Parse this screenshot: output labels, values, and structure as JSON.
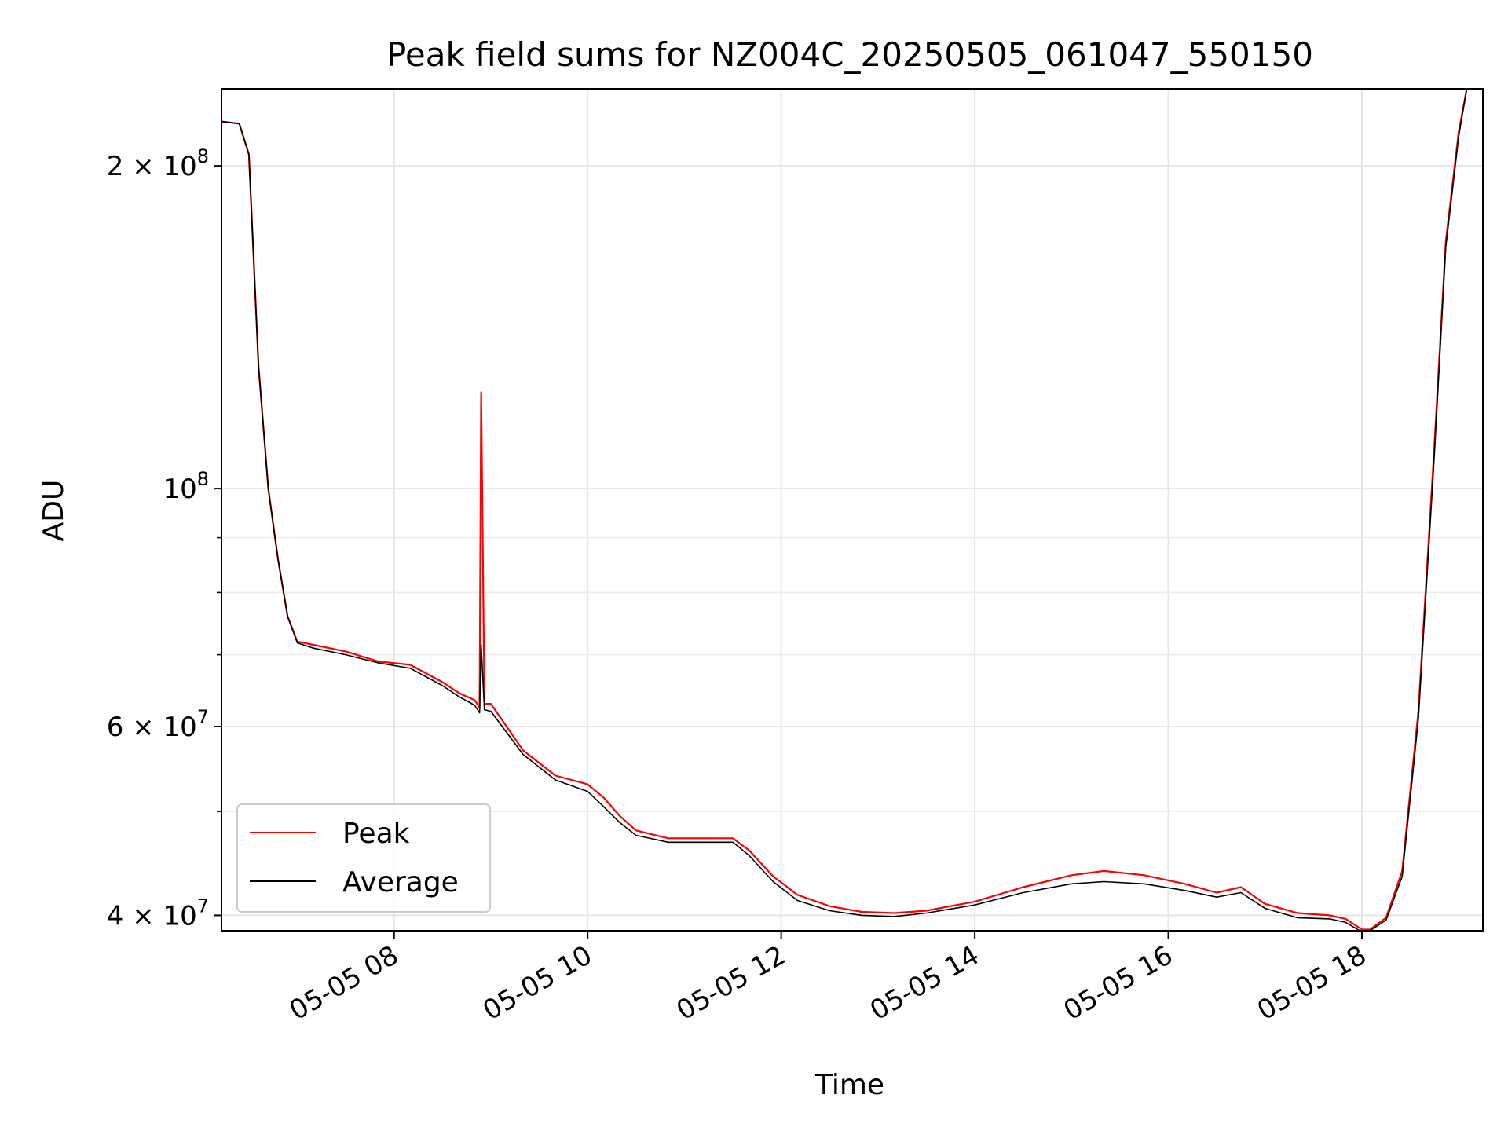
{
  "chart_data": {
    "type": "line",
    "title": "Peak field sums for NZ004C_20250505_061047_550150",
    "xlabel": "Time",
    "ylabel": "ADU",
    "y_scale": "log",
    "grid": true,
    "legend_position": "lower-left",
    "xlim": [
      "2025-05-05 06:13",
      "2025-05-05 19:15"
    ],
    "ylim": [
      38700000,
      236000000
    ],
    "x_ticks": [
      "05-05 08",
      "05-05 10",
      "05-05 12",
      "05-05 14",
      "05-05 16",
      "05-05 18"
    ],
    "y_ticks_major": [
      {
        "value": 40000000,
        "mantissa": "4",
        "exp": "7"
      },
      {
        "value": 60000000,
        "mantissa": "6",
        "exp": "7"
      },
      {
        "value": 100000000,
        "mantissa": "",
        "exp": "8"
      },
      {
        "value": 200000000,
        "mantissa": "2",
        "exp": "8"
      }
    ],
    "y_ticks_minor": [
      50000000,
      70000000,
      80000000,
      90000000
    ],
    "series": [
      {
        "name": "Peak",
        "color": "#ff0000",
        "x": [
          "2025-05-05 06:13",
          "2025-05-05 06:24",
          "2025-05-05 06:30",
          "2025-05-05 06:36",
          "2025-05-05 06:42",
          "2025-05-05 06:48",
          "2025-05-05 06:54",
          "2025-05-05 07:00",
          "2025-05-05 07:10",
          "2025-05-05 07:30",
          "2025-05-05 07:50",
          "2025-05-05 08:10",
          "2025-05-05 08:30",
          "2025-05-05 08:40",
          "2025-05-05 08:50",
          "2025-05-05 08:53",
          "2025-05-05 08:54",
          "2025-05-05 08:56",
          "2025-05-05 09:00",
          "2025-05-05 09:20",
          "2025-05-05 09:40",
          "2025-05-05 10:00",
          "2025-05-05 10:10",
          "2025-05-05 10:20",
          "2025-05-05 10:30",
          "2025-05-05 10:50",
          "2025-05-05 11:10",
          "2025-05-05 11:30",
          "2025-05-05 11:40",
          "2025-05-05 11:55",
          "2025-05-05 12:10",
          "2025-05-05 12:30",
          "2025-05-05 12:50",
          "2025-05-05 13:10",
          "2025-05-05 13:30",
          "2025-05-05 14:00",
          "2025-05-05 14:30",
          "2025-05-05 15:00",
          "2025-05-05 15:20",
          "2025-05-05 15:45",
          "2025-05-05 16:10",
          "2025-05-05 16:30",
          "2025-05-05 16:45",
          "2025-05-05 17:00",
          "2025-05-05 17:20",
          "2025-05-05 17:40",
          "2025-05-05 17:50",
          "2025-05-05 18:00",
          "2025-05-05 18:05",
          "2025-05-05 18:15",
          "2025-05-05 18:25",
          "2025-05-05 18:35",
          "2025-05-05 18:45",
          "2025-05-05 18:52",
          "2025-05-05 19:00",
          "2025-05-05 19:05"
        ],
        "y": [
          220000000,
          219000000,
          205000000,
          130000000,
          100000000,
          86000000,
          76000000,
          72000000,
          71500000,
          70500000,
          69000000,
          68500000,
          66000000,
          64500000,
          63500000,
          62500000,
          123000000,
          63000000,
          63000000,
          57000000,
          54000000,
          53000000,
          51500000,
          49500000,
          48000000,
          47200000,
          47200000,
          47200000,
          46000000,
          43500000,
          41800000,
          40800000,
          40300000,
          40200000,
          40400000,
          41200000,
          42500000,
          43600000,
          44000000,
          43600000,
          42800000,
          42000000,
          42500000,
          41000000,
          40200000,
          40000000,
          39700000,
          38800000,
          38800000,
          39800000,
          44000000,
          62000000,
          110000000,
          170000000,
          215000000,
          236000000
        ]
      },
      {
        "name": "Average",
        "color": "#000000",
        "x": [
          "2025-05-05 06:13",
          "2025-05-05 06:24",
          "2025-05-05 06:30",
          "2025-05-05 06:36",
          "2025-05-05 06:42",
          "2025-05-05 06:48",
          "2025-05-05 06:54",
          "2025-05-05 07:00",
          "2025-05-05 07:10",
          "2025-05-05 07:30",
          "2025-05-05 07:50",
          "2025-05-05 08:10",
          "2025-05-05 08:30",
          "2025-05-05 08:40",
          "2025-05-05 08:50",
          "2025-05-05 08:53",
          "2025-05-05 08:54",
          "2025-05-05 08:56",
          "2025-05-05 09:00",
          "2025-05-05 09:20",
          "2025-05-05 09:40",
          "2025-05-05 10:00",
          "2025-05-05 10:10",
          "2025-05-05 10:20",
          "2025-05-05 10:30",
          "2025-05-05 10:50",
          "2025-05-05 11:10",
          "2025-05-05 11:30",
          "2025-05-05 11:40",
          "2025-05-05 11:55",
          "2025-05-05 12:10",
          "2025-05-05 12:30",
          "2025-05-05 12:50",
          "2025-05-05 13:10",
          "2025-05-05 13:30",
          "2025-05-05 14:00",
          "2025-05-05 14:30",
          "2025-05-05 15:00",
          "2025-05-05 15:20",
          "2025-05-05 15:45",
          "2025-05-05 16:10",
          "2025-05-05 16:30",
          "2025-05-05 16:45",
          "2025-05-05 17:00",
          "2025-05-05 17:20",
          "2025-05-05 17:40",
          "2025-05-05 17:50",
          "2025-05-05 18:00",
          "2025-05-05 18:05",
          "2025-05-05 18:15",
          "2025-05-05 18:25",
          "2025-05-05 18:35",
          "2025-05-05 18:45",
          "2025-05-05 18:52",
          "2025-05-05 19:00",
          "2025-05-05 19:05"
        ],
        "y": [
          220000000,
          219000000,
          205000000,
          130000000,
          100000000,
          86000000,
          76000000,
          71800000,
          71000000,
          70000000,
          68800000,
          68000000,
          65500000,
          64000000,
          62800000,
          61800000,
          71500000,
          62200000,
          62000000,
          56500000,
          53500000,
          52200000,
          50500000,
          48800000,
          47500000,
          46800000,
          46800000,
          46800000,
          45500000,
          43000000,
          41300000,
          40400000,
          40000000,
          39900000,
          40200000,
          40900000,
          42000000,
          42800000,
          43000000,
          42800000,
          42200000,
          41600000,
          42000000,
          40600000,
          39800000,
          39700000,
          39400000,
          38600000,
          38700000,
          39600000,
          43500000,
          61000000,
          108000000,
          168000000,
          213000000,
          236000000
        ]
      }
    ]
  }
}
